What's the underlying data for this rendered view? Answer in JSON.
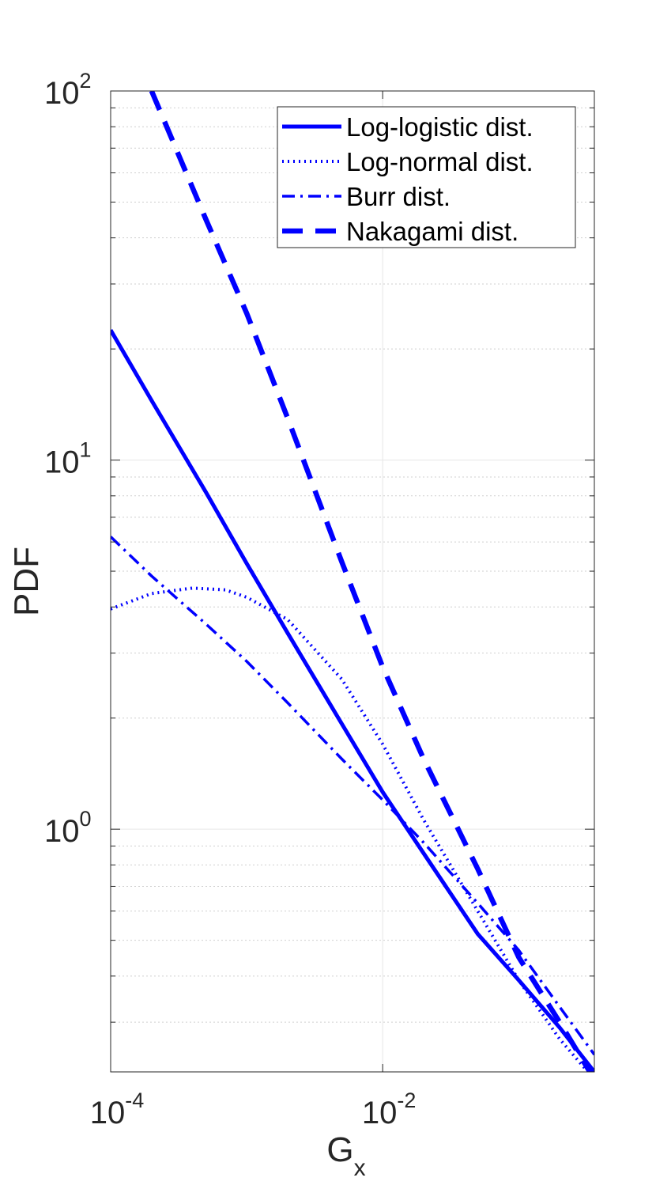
{
  "chart_data": {
    "type": "line",
    "xscale": "log",
    "yscale": "log",
    "xlim": [
      0.0001,
      0.36
    ],
    "ylim": [
      0.22,
      100
    ],
    "xlabel": {
      "base": "G",
      "sub": "x"
    },
    "ylabel": "PDF",
    "x_ticks": [
      {
        "base": "10",
        "exp": "-4",
        "value": 0.0001
      },
      {
        "base": "10",
        "exp": "-2",
        "value": 0.01
      }
    ],
    "y_ticks": [
      {
        "base": "10",
        "exp": "0",
        "value": 1
      },
      {
        "base": "10",
        "exp": "1",
        "value": 10
      },
      {
        "base": "10",
        "exp": "2",
        "value": 100
      }
    ],
    "grid": true,
    "minor_grid_y": true,
    "legend_position": "top-right",
    "color": "#0000ff",
    "series": [
      {
        "name": "Log-logistic dist.",
        "style": "solid",
        "x": [
          0.0001,
          0.0002,
          0.0005,
          0.001,
          0.002,
          0.005,
          0.01,
          0.02,
          0.05,
          0.1,
          0.2,
          0.36
        ],
        "y": [
          22.5,
          14.5,
          8.2,
          5.25,
          3.4,
          1.93,
          1.26,
          0.86,
          0.52,
          0.39,
          0.29,
          0.22
        ]
      },
      {
        "name": "Log-normal dist.",
        "style": "dotted",
        "x": [
          0.0001,
          0.0002,
          0.0004,
          0.0007,
          0.001,
          0.002,
          0.005,
          0.01,
          0.02,
          0.05,
          0.1,
          0.2,
          0.36
        ],
        "y": [
          3.95,
          4.35,
          4.5,
          4.45,
          4.25,
          3.7,
          2.55,
          1.7,
          1.06,
          0.6,
          0.39,
          0.27,
          0.21
        ]
      },
      {
        "name": "Burr dist.",
        "style": "dashdot",
        "x": [
          0.0001,
          0.0002,
          0.0005,
          0.001,
          0.002,
          0.005,
          0.01,
          0.02,
          0.05,
          0.1,
          0.2,
          0.36
        ],
        "y": [
          6.2,
          4.85,
          3.6,
          2.85,
          2.2,
          1.55,
          1.2,
          0.92,
          0.63,
          0.47,
          0.33,
          0.245
        ]
      },
      {
        "name": "Nakagami dist.",
        "style": "dashed",
        "x": [
          0.0002,
          0.0005,
          0.001,
          0.002,
          0.005,
          0.01,
          0.02,
          0.05,
          0.1,
          0.2,
          0.36
        ],
        "y": [
          100,
          45,
          25,
          13,
          5.3,
          2.75,
          1.55,
          0.78,
          0.45,
          0.3,
          0.21
        ]
      }
    ]
  }
}
